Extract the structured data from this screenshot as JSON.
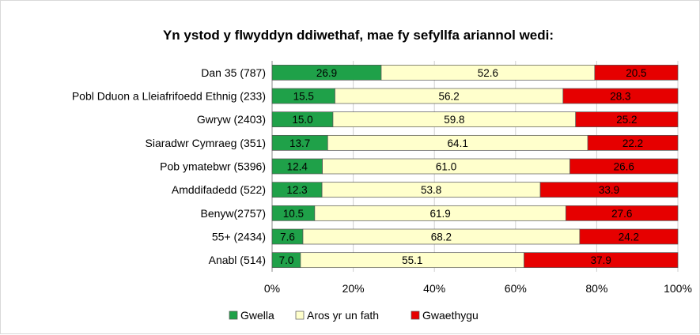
{
  "chart_data": {
    "type": "bar",
    "orientation": "horizontal",
    "stacked": "percent",
    "title": "Yn ystod y flwyddyn ddiwethaf, mae fy sefyllfa ariannol wedi:",
    "categories": [
      "Dan 35 (787)",
      "Pobl Dduon a Lleiafrifoedd Ethnig (233)",
      "Gwryw (2403)",
      "Siaradwr Cymraeg (351)",
      "Pob ymatebwr (5396)",
      "Amddifadedd (522)",
      "Benyw(2757)",
      "55+ (2434)",
      "Anabl (514)"
    ],
    "series": [
      {
        "name": "Gwella",
        "color": "#1fa149",
        "values": [
          26.9,
          15.5,
          15.0,
          13.7,
          12.4,
          12.3,
          10.5,
          7.6,
          7.0
        ]
      },
      {
        "name": "Aros yr un fath",
        "color": "#ffffcc",
        "values": [
          52.6,
          56.2,
          59.8,
          64.1,
          61.0,
          53.8,
          61.9,
          68.2,
          55.1
        ]
      },
      {
        "name": "Gwaethygu",
        "color": "#e60000",
        "values": [
          20.5,
          28.3,
          25.2,
          22.2,
          26.6,
          33.9,
          27.6,
          24.2,
          37.9
        ]
      }
    ],
    "data_labels": [
      [
        "26.9",
        "15.5",
        "15.0",
        "13.7",
        "12.4",
        "12.3",
        "10.5",
        "7.6",
        "7.0"
      ],
      [
        "52.6",
        "56.2",
        "59.8",
        "64.1",
        "61.0",
        "53.8",
        "61.9",
        "68.2",
        "55.1"
      ],
      [
        "20.5",
        "28.3",
        "25.2",
        "22.2",
        "26.6",
        "33.9",
        "27.6",
        "24.2",
        "37.9"
      ]
    ],
    "xlim": [
      0,
      100
    ],
    "xticks": [
      "0%",
      "20%",
      "40%",
      "60%",
      "80%",
      "100%"
    ],
    "xlabel": "",
    "ylabel": "",
    "legend_position": "bottom",
    "grid": true
  }
}
